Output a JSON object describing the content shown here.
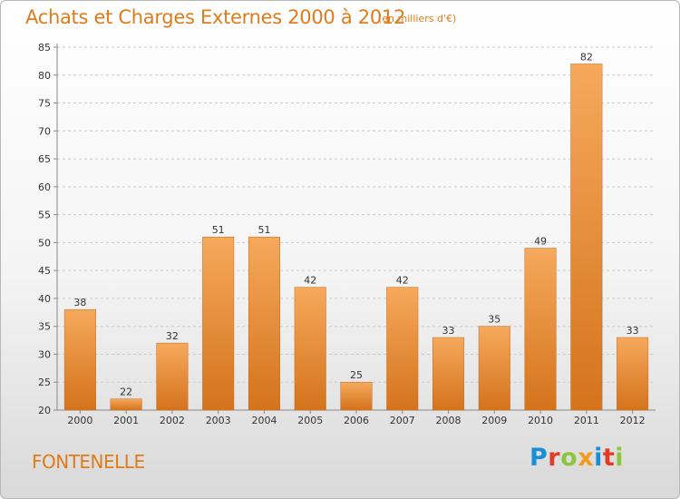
{
  "title": "Achats et Charges Externes 2000 à 2012",
  "subtitle": "(en milliers d'€)",
  "commune": "FONTENELLE",
  "logo_text": "Proxiti",
  "colors": {
    "accent": "#e07b1a",
    "bar_light": "#f6a95c",
    "bar_dark": "#d4731c",
    "grid": "#cccccc",
    "axis": "#888888",
    "logo": [
      "#1a8fd6",
      "#e03c28",
      "#8cc63e",
      "#f29c1f",
      "#1a8fd6",
      "#e03c28",
      "#8cc63e"
    ]
  },
  "chart_data": {
    "type": "bar",
    "title": "Achats et Charges Externes 2000 à 2012",
    "subtitle": "(en milliers d'€)",
    "categories": [
      "2000",
      "2001",
      "2002",
      "2003",
      "2004",
      "2005",
      "2006",
      "2007",
      "2008",
      "2009",
      "2010",
      "2011",
      "2012"
    ],
    "values": [
      38,
      22,
      32,
      51,
      51,
      42,
      25,
      42,
      33,
      35,
      49,
      82,
      33
    ],
    "xlabel": "",
    "ylabel": "",
    "ylim": [
      20,
      85
    ],
    "yticks": [
      20,
      25,
      30,
      35,
      40,
      45,
      50,
      55,
      60,
      65,
      70,
      75,
      80,
      85
    ],
    "grid": true,
    "data_labels": true
  }
}
